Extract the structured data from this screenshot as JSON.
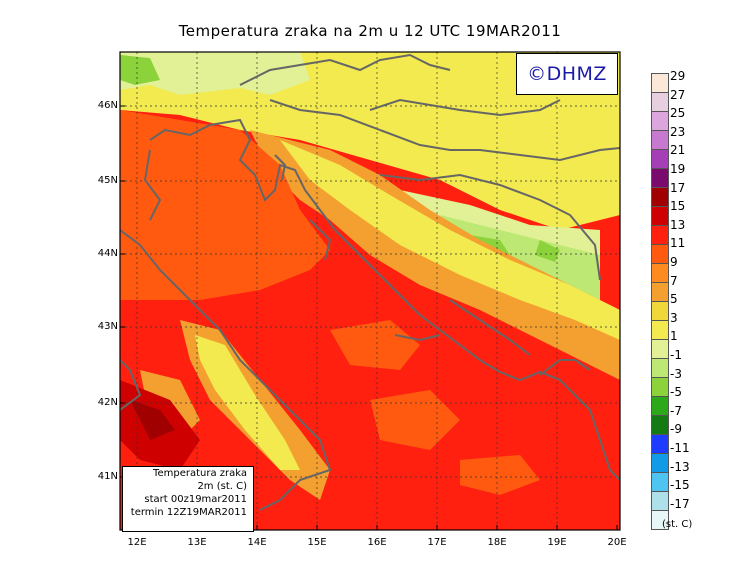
{
  "title": "Temperatura zraka na 2m u 12 UTC 19MAR2011",
  "logo": "©DHMZ",
  "lat_labels": [
    "46N",
    "45N",
    "44N",
    "43N",
    "42N",
    "41N"
  ],
  "lon_labels": [
    "12E",
    "13E",
    "14E",
    "15E",
    "16E",
    "17E",
    "18E",
    "19E",
    "20E"
  ],
  "info_box": [
    "Temperatura zraka",
    "2m (st. C)",
    "start 00z19mar2011",
    "termin 12Z19MAR2011"
  ],
  "colorbar": {
    "unit": "(st. C)",
    "labels": [
      "29",
      "27",
      "25",
      "23",
      "21",
      "19",
      "17",
      "15",
      "13",
      "11",
      "9",
      "7",
      "5",
      "3",
      "1",
      "-1",
      "-3",
      "-5",
      "-7",
      "-9",
      "-11",
      "-13",
      "-15",
      "-17"
    ],
    "colors": [
      "#fbe8d8",
      "#e8cfe0",
      "#dca6dc",
      "#c779d0",
      "#a43fb6",
      "#7a0a6e",
      "#a00000",
      "#cf0000",
      "#ff2010",
      "#ff5a10",
      "#ff8a20",
      "#f4a030",
      "#f1d83a",
      "#f2ea4e",
      "#e2f096",
      "#bde874",
      "#8cd23a",
      "#2ca81a",
      "#137a14",
      "#1e3cff",
      "#119ae6",
      "#50c4f0",
      "#aee0ea",
      "#e8f8f8"
    ]
  }
}
